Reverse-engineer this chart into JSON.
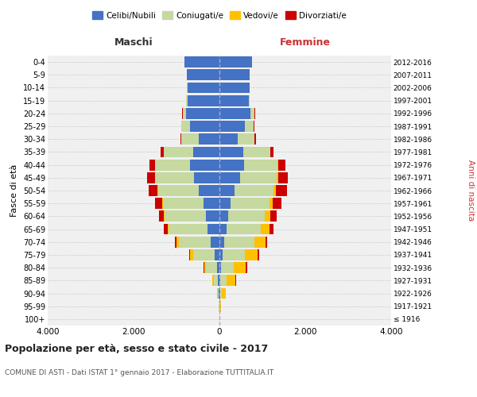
{
  "age_groups": [
    "100+",
    "95-99",
    "90-94",
    "85-89",
    "80-84",
    "75-79",
    "70-74",
    "65-69",
    "60-64",
    "55-59",
    "50-54",
    "45-49",
    "40-44",
    "35-39",
    "30-34",
    "25-29",
    "20-24",
    "15-19",
    "10-14",
    "5-9",
    "0-4"
  ],
  "birth_years": [
    "≤ 1916",
    "1917-1921",
    "1922-1926",
    "1927-1931",
    "1932-1936",
    "1937-1941",
    "1942-1946",
    "1947-1951",
    "1952-1956",
    "1957-1961",
    "1962-1966",
    "1967-1971",
    "1972-1976",
    "1977-1981",
    "1982-1986",
    "1987-1991",
    "1992-1996",
    "1997-2001",
    "2002-2006",
    "2007-2011",
    "2012-2016"
  ],
  "maschi": {
    "celibi": [
      2,
      5,
      10,
      30,
      60,
      120,
      200,
      280,
      320,
      370,
      480,
      600,
      680,
      620,
      480,
      680,
      780,
      750,
      750,
      760,
      820
    ],
    "coniugati": [
      2,
      8,
      30,
      100,
      250,
      500,
      750,
      900,
      950,
      950,
      950,
      900,
      820,
      680,
      400,
      200,
      80,
      20,
      5,
      3,
      2
    ],
    "vedovi": [
      0,
      2,
      10,
      30,
      50,
      60,
      50,
      30,
      20,
      15,
      10,
      8,
      5,
      3,
      2,
      1,
      0,
      0,
      0,
      0,
      0
    ],
    "divorziati": [
      0,
      0,
      2,
      5,
      10,
      20,
      40,
      80,
      120,
      160,
      200,
      180,
      120,
      60,
      20,
      8,
      3,
      1,
      0,
      0,
      0
    ]
  },
  "femmine": {
    "nubili": [
      2,
      5,
      10,
      20,
      40,
      70,
      120,
      160,
      200,
      260,
      360,
      480,
      580,
      560,
      430,
      600,
      730,
      680,
      700,
      700,
      760
    ],
    "coniugate": [
      2,
      10,
      50,
      150,
      300,
      520,
      700,
      800,
      860,
      900,
      900,
      860,
      780,
      620,
      380,
      200,
      90,
      30,
      5,
      3,
      2
    ],
    "vedove": [
      2,
      20,
      80,
      200,
      280,
      300,
      250,
      200,
      120,
      80,
      50,
      30,
      15,
      8,
      4,
      2,
      1,
      0,
      0,
      0,
      0
    ],
    "divorziate": [
      0,
      2,
      5,
      10,
      20,
      30,
      50,
      100,
      150,
      200,
      260,
      220,
      160,
      80,
      30,
      10,
      4,
      1,
      0,
      0,
      0
    ]
  },
  "colors": {
    "celibi": "#4472c4",
    "coniugati": "#c5d9a0",
    "vedovi": "#ffc000",
    "divorziati": "#cc0000"
  },
  "title": "Popolazione per età, sesso e stato civile - 2017",
  "subtitle": "COMUNE DI ASTI - Dati ISTAT 1° gennaio 2017 - Elaborazione TUTTITALIA.IT",
  "xlabel_maschi": "Maschi",
  "xlabel_femmine": "Femmine",
  "ylabel_left": "Fasce di età",
  "ylabel_right": "Anni di nascita",
  "xlim": 4000,
  "legend_labels": [
    "Celibi/Nubili",
    "Coniugati/e",
    "Vedovi/e",
    "Divorziati/e"
  ],
  "background_color": "#ffffff",
  "grid_color": "#cccccc"
}
